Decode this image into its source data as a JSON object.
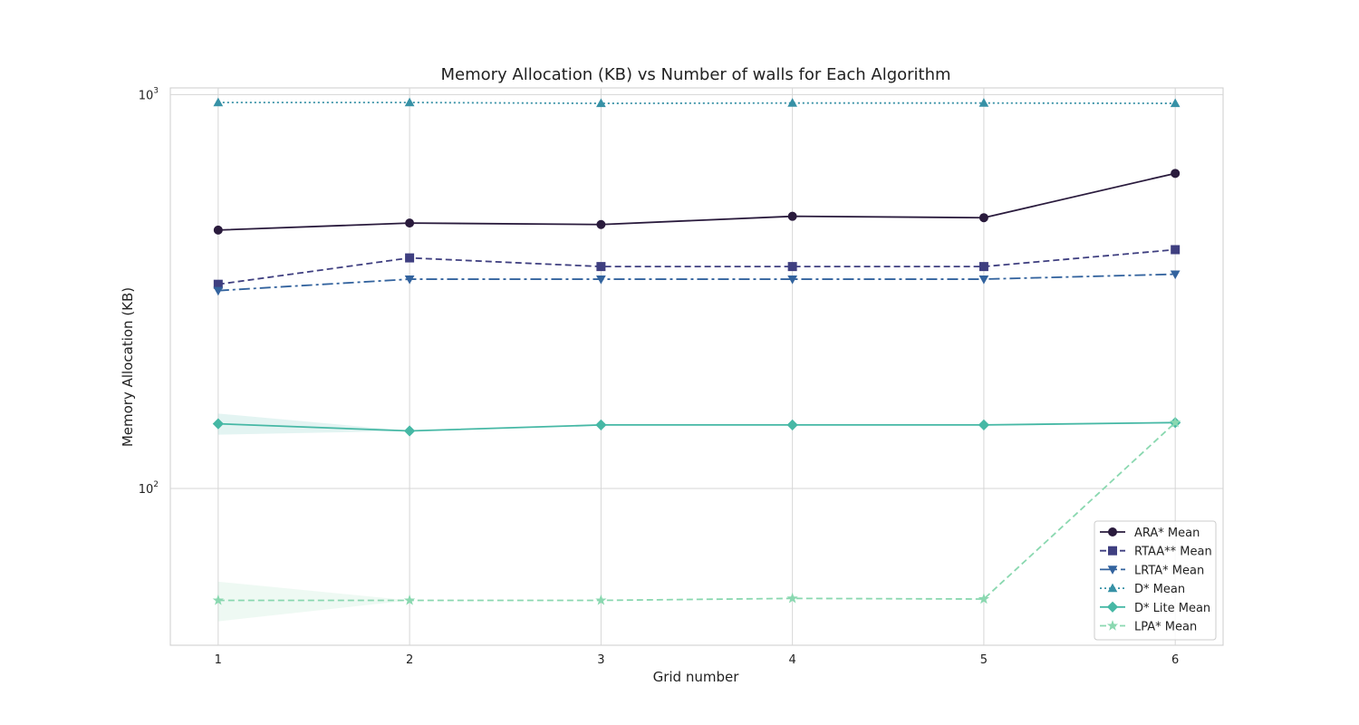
{
  "chart_data": {
    "type": "line",
    "title": "Memory Allocation (KB) vs Number of walls for Each Algorithm",
    "xlabel": "Grid number",
    "ylabel": "Memory Allocation (KB)",
    "x": [
      1,
      2,
      3,
      4,
      5,
      6
    ],
    "x_tick_labels": [
      "1",
      "2",
      "3",
      "4",
      "5",
      "6"
    ],
    "xlim": [
      0.75,
      6.25
    ],
    "ylim": [
      40,
      1040
    ],
    "yscale": "log",
    "y_ticks": [
      {
        "value": 100,
        "base": "10",
        "exp": "2"
      },
      {
        "value": 1000,
        "base": "10",
        "exp": "3"
      }
    ],
    "grid": true,
    "legend_position": "lower-right",
    "series": [
      {
        "name": "ARA* Mean",
        "values": [
          453,
          472,
          468,
          491,
          487,
          631
        ],
        "color": "#2a1b3d",
        "dash": "",
        "marker": "circle"
      },
      {
        "name": "RTAA** Mean",
        "values": [
          330,
          385,
          366,
          366,
          366,
          404
        ],
        "color": "#3f3f80",
        "dash": "7,4",
        "marker": "square"
      },
      {
        "name": "LRTA* Mean",
        "values": [
          318,
          340,
          340,
          340,
          340,
          350
        ],
        "color": "#33639e",
        "dash": "12,4,3,4",
        "marker": "triangle-down"
      },
      {
        "name": "D* Mean",
        "values": [
          955,
          955,
          950,
          952,
          952,
          950
        ],
        "color": "#3791a6",
        "dash": "2,3",
        "marker": "triangle-up"
      },
      {
        "name": "D* Lite Mean",
        "values": [
          146,
          140,
          145,
          145,
          145,
          147
        ],
        "color": "#46b8a5",
        "dash": "",
        "marker": "diamond",
        "band": {
          "upper": [
            155,
            140,
            145,
            145,
            145,
            147
          ],
          "lower": [
            137,
            140,
            145,
            145,
            145,
            147
          ]
        }
      },
      {
        "name": "LPA* Mean",
        "values": [
          52,
          52,
          52,
          52.6,
          52.4,
          147
        ],
        "color": "#8ad8b0",
        "dash": "7,4",
        "marker": "star",
        "band": {
          "upper": [
            58,
            52,
            52,
            52.6,
            52.4,
            147
          ],
          "lower": [
            46,
            52,
            52,
            52.6,
            52.4,
            147
          ]
        }
      }
    ]
  }
}
